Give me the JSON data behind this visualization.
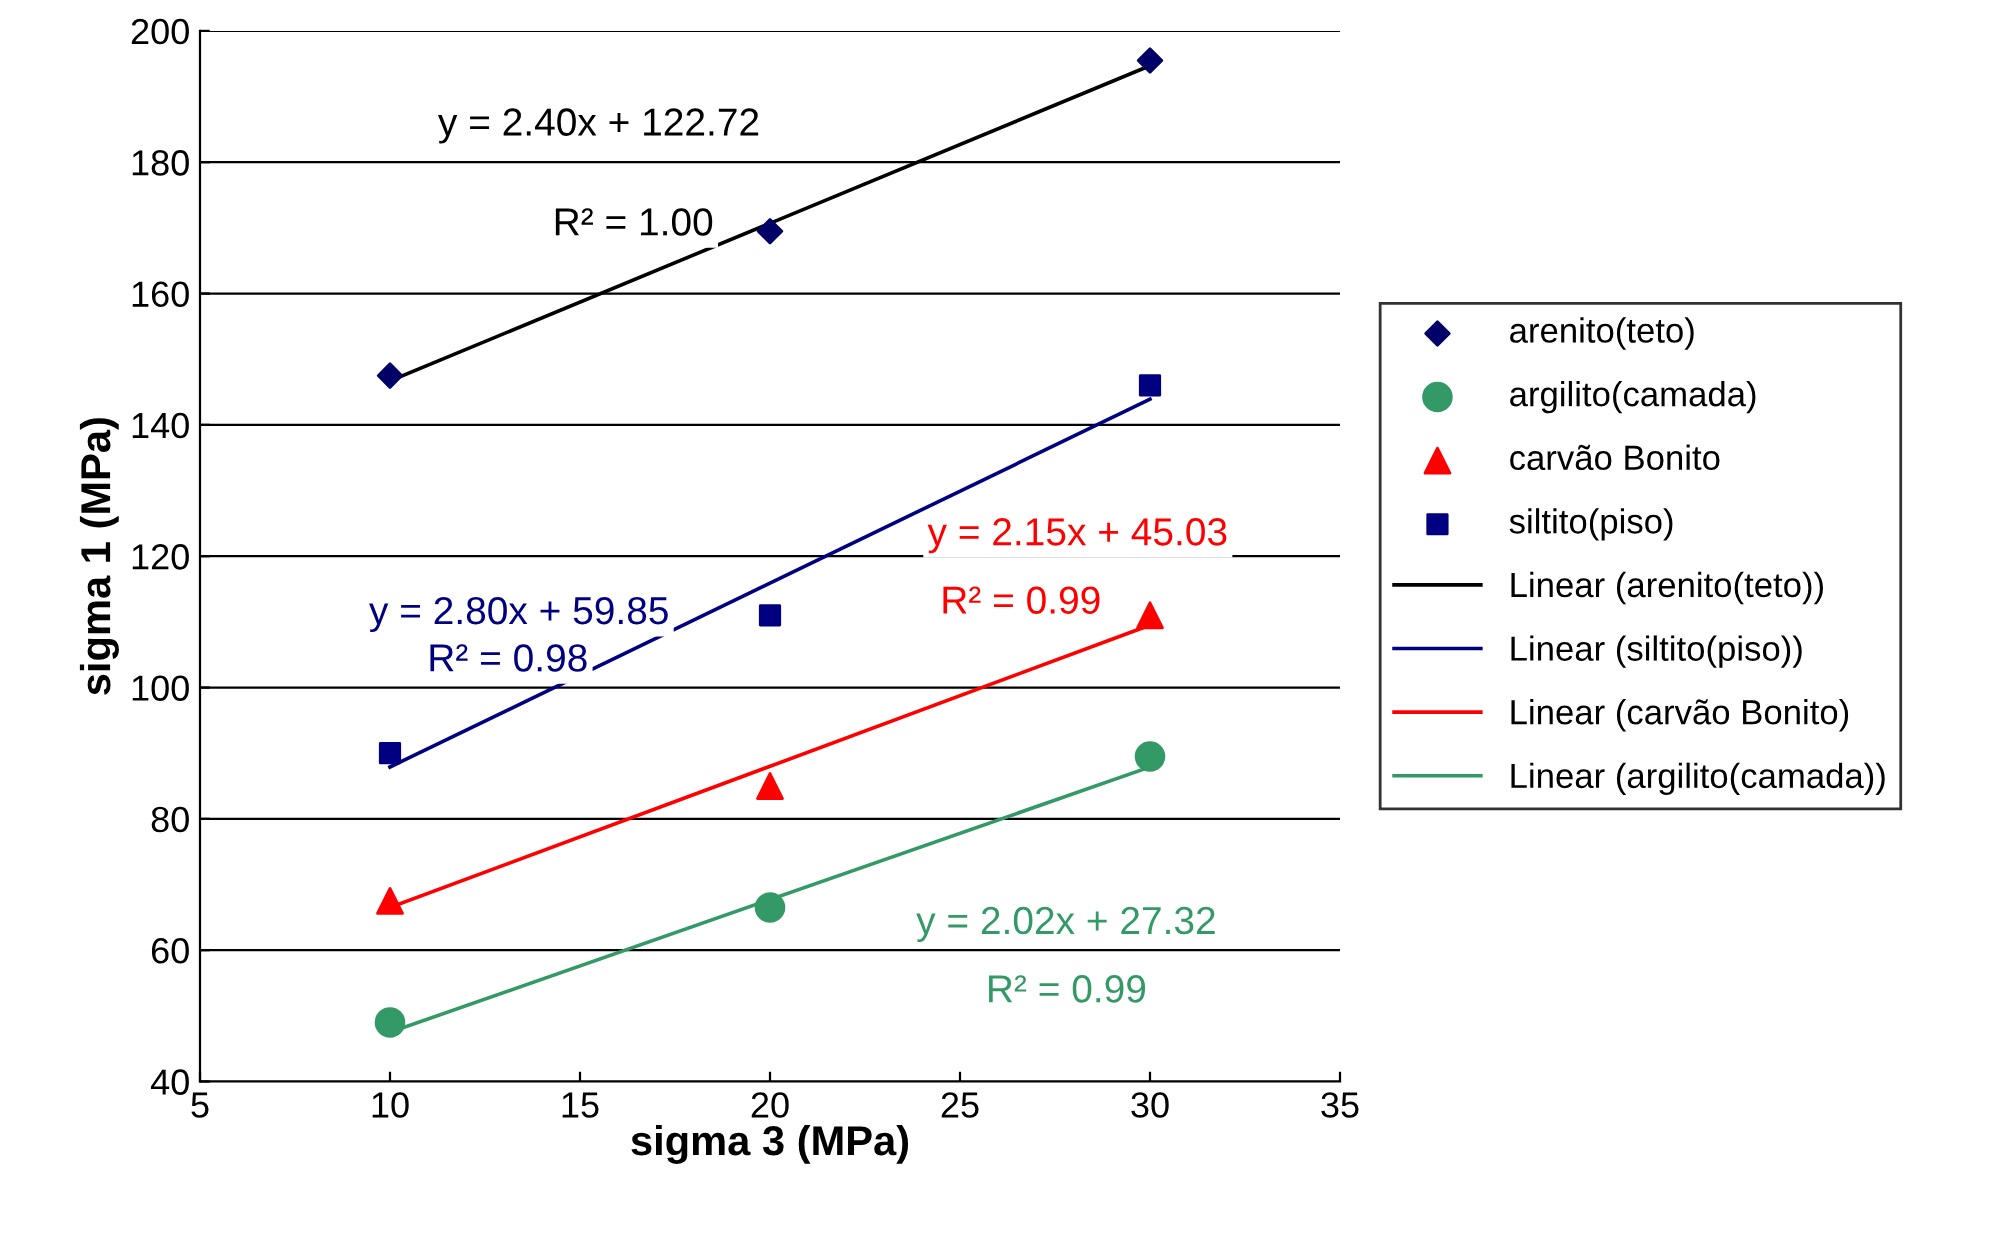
{
  "chart_data": {
    "type": "scatter",
    "xlabel": "sigma 3 (MPa)",
    "ylabel": "sigma 1 (MPa)",
    "xlim": [
      5,
      35
    ],
    "xticks": [
      5,
      10,
      15,
      20,
      25,
      30,
      35
    ],
    "ylim": [
      40,
      200
    ],
    "yticks": [
      40,
      60,
      80,
      100,
      120,
      140,
      160,
      180,
      200
    ],
    "grid": "y",
    "legend": "right",
    "series": [
      {
        "name": "arenito(teto)",
        "marker": "diamond",
        "color": "#000066",
        "x": [
          10,
          20,
          30
        ],
        "values": [
          147.5,
          169.5,
          195.5
        ]
      },
      {
        "name": "argilito(camada)",
        "marker": "circle",
        "color": "#339966",
        "x": [
          10,
          20,
          30
        ],
        "values": [
          49,
          66.5,
          89.5
        ]
      },
      {
        "name": "carvão Bonito",
        "marker": "triangle",
        "color": "#ff0000",
        "x": [
          10,
          20,
          30
        ],
        "values": [
          67.5,
          85,
          111
        ]
      },
      {
        "name": "siltito(piso)",
        "marker": "square",
        "color": "#000080",
        "x": [
          10,
          20,
          30
        ],
        "values": [
          90,
          111,
          146
        ]
      },
      {
        "name": "Linear (arenito(teto))",
        "type": "line",
        "color": "#000000",
        "x": [
          10,
          30
        ],
        "values": [
          146.7,
          194.7
        ]
      },
      {
        "name": "Linear (siltito(piso))",
        "type": "line",
        "color": "#000080",
        "x": [
          10,
          30
        ],
        "values": [
          87.9,
          143.9
        ]
      },
      {
        "name": "Linear (carvão Bonito)",
        "type": "line",
        "color": "#ff0000",
        "x": [
          10,
          30
        ],
        "values": [
          66.5,
          109.5
        ]
      },
      {
        "name": "Linear (argilito(camada))",
        "type": "line",
        "color": "#339966",
        "x": [
          10,
          30
        ],
        "values": [
          47.5,
          87.9
        ]
      }
    ],
    "annotations": [
      "y = 2.40x + 122.72",
      "R² = 1.00",
      "y = 2.80x + 59.85",
      "R² = 0.98",
      "y = 2.15x + 45.03",
      "R² = 0.99",
      "y = 2.02x + 27.32",
      "R² = 0.99"
    ]
  }
}
